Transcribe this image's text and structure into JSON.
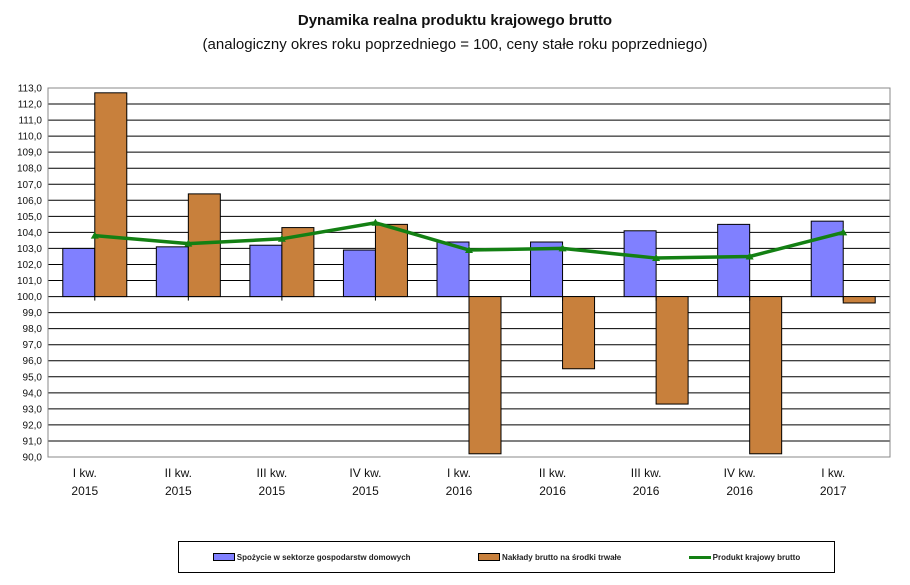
{
  "chart_data": {
    "type": "bar",
    "title": "Dynamika realna produktu krajowego brutto",
    "subtitle": "(analogiczny okres roku poprzedniego = 100, ceny stałe roku poprzedniego)",
    "xlabel": "",
    "ylabel": "",
    "ylim": [
      90,
      113
    ],
    "baseline": 100,
    "grid": true,
    "legend_position": "bottom",
    "yticks": [
      "90,0",
      "91,0",
      "92,0",
      "93,0",
      "94,0",
      "95,0",
      "96,0",
      "97,0",
      "98,0",
      "99,0",
      "100,0",
      "101,0",
      "102,0",
      "103,0",
      "104,0",
      "105,0",
      "106,0",
      "107,0",
      "108,0",
      "109,0",
      "110,0",
      "111,0",
      "112,0",
      "113,0"
    ],
    "categories": [
      [
        "I kw.",
        "2015"
      ],
      [
        "II kw.",
        "2015"
      ],
      [
        "III kw.",
        "2015"
      ],
      [
        "IV kw.",
        "2015"
      ],
      [
        "I kw.",
        "2016"
      ],
      [
        "II kw.",
        "2016"
      ],
      [
        "III kw.",
        "2016"
      ],
      [
        "IV kw.",
        "2016"
      ],
      [
        "I kw.",
        "2017"
      ]
    ],
    "series": [
      {
        "name": "Spożycie w sektorze gospodarstw domowych",
        "type": "bar",
        "color": "#8080ff",
        "values": [
          103.0,
          103.1,
          103.2,
          102.9,
          103.4,
          103.4,
          104.1,
          104.5,
          104.7
        ]
      },
      {
        "name": "Nakłady brutto na środki trwałe",
        "type": "bar",
        "color": "#c8803c",
        "values": [
          112.7,
          106.4,
          104.3,
          104.5,
          90.2,
          95.5,
          93.3,
          90.2,
          99.6
        ]
      },
      {
        "name": "Produkt krajowy brutto",
        "type": "line",
        "color": "#138013",
        "values": [
          103.8,
          103.3,
          103.6,
          104.6,
          102.9,
          103.0,
          102.4,
          102.5,
          104.0
        ]
      }
    ]
  }
}
